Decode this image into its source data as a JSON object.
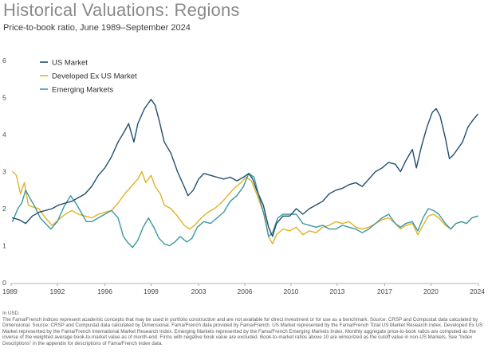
{
  "header": {
    "title": "Historical Valuations: Regions",
    "subtitle": "Price-to-book ratio, June 1989–September 2024"
  },
  "footnotes": {
    "currency": "In USD.",
    "body": "The Fama/French indices represent academic concepts that may be used in portfolio construction and are not available for direct investment or for use as a benchmark. Source: CRSP and Compustat data calculated by Dimensional. Source: CRSP and Compustat data calculated by Dimensional. Fama/French data provided by Fama/French. US Market represented by the Fama/French Total US Market Research Index. Developed Ex US Market represented by the Fama/French International Market Research Index. Emerging Markets represented by the Fama/French Emerging Markets Index. Monthly aggregate price-to-book ratios are computed as the inverse of the weighted average book-to-market value as of month-end. Firms with negative book value are excluded. Book-to-market ratios above 10 are winsorized as the cutoff value in non-US Markets. See \"Index Descriptions\" in the appendix for descriptions of Fama/French index data."
  },
  "chart_data": {
    "type": "line",
    "title": "Historical Valuations: Regions",
    "subtitle": "Price-to-book ratio, June 1989–September 2024",
    "xlabel": "",
    "ylabel": "",
    "xlim": [
      1989.4,
      2024.8
    ],
    "ylim": [
      0,
      6
    ],
    "x_ticks": [
      "1989",
      "1992",
      "1996",
      "1999",
      "2003",
      "2006",
      "2010",
      "2013",
      "2017",
      "2020",
      "2024"
    ],
    "x_tick_values": [
      1989.4,
      1992.9,
      1996.5,
      2000.0,
      2003.6,
      2007.1,
      2010.6,
      2014.1,
      2017.7,
      2021.2,
      2024.8
    ],
    "y_ticks": [
      "0",
      "1",
      "2",
      "3",
      "4",
      "5",
      "6"
    ],
    "y_tick_values": [
      0,
      1,
      2,
      3,
      4,
      5,
      6
    ],
    "grid": false,
    "legend_position": "top-left",
    "series": [
      {
        "name": "US Market",
        "color": "#1f4e6e",
        "points": [
          [
            1989.5,
            1.75
          ],
          [
            1990.0,
            1.7
          ],
          [
            1990.5,
            1.6
          ],
          [
            1991.0,
            1.8
          ],
          [
            1991.5,
            1.9
          ],
          [
            1992.0,
            1.95
          ],
          [
            1992.5,
            2.0
          ],
          [
            1993.0,
            2.1
          ],
          [
            1993.5,
            2.15
          ],
          [
            1994.0,
            2.2
          ],
          [
            1994.5,
            2.3
          ],
          [
            1995.0,
            2.4
          ],
          [
            1995.5,
            2.6
          ],
          [
            1996.0,
            2.9
          ],
          [
            1996.5,
            3.1
          ],
          [
            1997.0,
            3.4
          ],
          [
            1997.5,
            3.8
          ],
          [
            1998.0,
            4.1
          ],
          [
            1998.3,
            4.3
          ],
          [
            1998.7,
            3.8
          ],
          [
            1999.0,
            4.3
          ],
          [
            1999.5,
            4.7
          ],
          [
            2000.0,
            4.95
          ],
          [
            2000.3,
            4.8
          ],
          [
            2000.6,
            4.4
          ],
          [
            2001.0,
            3.8
          ],
          [
            2001.5,
            3.5
          ],
          [
            2002.0,
            3.0
          ],
          [
            2002.5,
            2.6
          ],
          [
            2002.8,
            2.35
          ],
          [
            2003.2,
            2.5
          ],
          [
            2003.6,
            2.8
          ],
          [
            2004.0,
            2.95
          ],
          [
            2004.5,
            2.9
          ],
          [
            2005.0,
            2.85
          ],
          [
            2005.5,
            2.8
          ],
          [
            2006.0,
            2.85
          ],
          [
            2006.5,
            2.75
          ],
          [
            2007.0,
            2.85
          ],
          [
            2007.4,
            2.95
          ],
          [
            2007.7,
            2.8
          ],
          [
            2008.0,
            2.5
          ],
          [
            2008.5,
            2.1
          ],
          [
            2008.9,
            1.5
          ],
          [
            2009.2,
            1.25
          ],
          [
            2009.5,
            1.6
          ],
          [
            2010.0,
            1.8
          ],
          [
            2010.5,
            1.8
          ],
          [
            2011.0,
            2.0
          ],
          [
            2011.5,
            1.85
          ],
          [
            2012.0,
            2.0
          ],
          [
            2012.5,
            2.1
          ],
          [
            2013.0,
            2.2
          ],
          [
            2013.5,
            2.4
          ],
          [
            2014.0,
            2.5
          ],
          [
            2014.5,
            2.55
          ],
          [
            2015.0,
            2.65
          ],
          [
            2015.5,
            2.7
          ],
          [
            2016.0,
            2.6
          ],
          [
            2016.5,
            2.8
          ],
          [
            2017.0,
            3.0
          ],
          [
            2017.5,
            3.1
          ],
          [
            2018.0,
            3.25
          ],
          [
            2018.5,
            3.2
          ],
          [
            2018.9,
            3.0
          ],
          [
            2019.3,
            3.3
          ],
          [
            2019.8,
            3.6
          ],
          [
            2020.1,
            3.1
          ],
          [
            2020.5,
            3.7
          ],
          [
            2020.9,
            4.2
          ],
          [
            2021.3,
            4.6
          ],
          [
            2021.6,
            4.7
          ],
          [
            2021.9,
            4.5
          ],
          [
            2022.3,
            3.9
          ],
          [
            2022.6,
            3.35
          ],
          [
            2022.9,
            3.45
          ],
          [
            2023.2,
            3.6
          ],
          [
            2023.6,
            3.8
          ],
          [
            2024.0,
            4.2
          ],
          [
            2024.4,
            4.4
          ],
          [
            2024.75,
            4.55
          ]
        ]
      },
      {
        "name": "Developed Ex US Market",
        "color": "#e0b226",
        "points": [
          [
            1989.5,
            3.0
          ],
          [
            1989.8,
            2.9
          ],
          [
            1990.1,
            2.4
          ],
          [
            1990.4,
            2.7
          ],
          [
            1990.7,
            2.1
          ],
          [
            1991.0,
            2.05
          ],
          [
            1991.5,
            2.0
          ],
          [
            1992.0,
            1.75
          ],
          [
            1992.5,
            1.55
          ],
          [
            1993.0,
            1.7
          ],
          [
            1993.5,
            1.85
          ],
          [
            1994.0,
            1.95
          ],
          [
            1994.5,
            1.85
          ],
          [
            1995.0,
            1.8
          ],
          [
            1995.5,
            1.75
          ],
          [
            1996.0,
            1.85
          ],
          [
            1996.5,
            1.9
          ],
          [
            1997.0,
            1.95
          ],
          [
            1997.5,
            2.15
          ],
          [
            1998.0,
            2.4
          ],
          [
            1998.5,
            2.6
          ],
          [
            1999.0,
            2.8
          ],
          [
            1999.3,
            3.0
          ],
          [
            1999.6,
            2.7
          ],
          [
            2000.0,
            2.9
          ],
          [
            2000.3,
            2.6
          ],
          [
            2000.7,
            2.4
          ],
          [
            2001.0,
            2.1
          ],
          [
            2001.5,
            2.0
          ],
          [
            2002.0,
            1.8
          ],
          [
            2002.5,
            1.55
          ],
          [
            2002.9,
            1.45
          ],
          [
            2003.3,
            1.55
          ],
          [
            2003.8,
            1.75
          ],
          [
            2004.3,
            1.9
          ],
          [
            2004.8,
            2.0
          ],
          [
            2005.3,
            2.15
          ],
          [
            2005.8,
            2.35
          ],
          [
            2006.3,
            2.55
          ],
          [
            2006.8,
            2.7
          ],
          [
            2007.2,
            2.85
          ],
          [
            2007.6,
            2.75
          ],
          [
            2008.0,
            2.4
          ],
          [
            2008.5,
            1.9
          ],
          [
            2008.9,
            1.25
          ],
          [
            2009.2,
            1.05
          ],
          [
            2009.5,
            1.3
          ],
          [
            2010.0,
            1.45
          ],
          [
            2010.5,
            1.4
          ],
          [
            2011.0,
            1.5
          ],
          [
            2011.5,
            1.3
          ],
          [
            2012.0,
            1.4
          ],
          [
            2012.5,
            1.35
          ],
          [
            2013.0,
            1.5
          ],
          [
            2013.5,
            1.55
          ],
          [
            2014.0,
            1.65
          ],
          [
            2014.5,
            1.6
          ],
          [
            2015.0,
            1.65
          ],
          [
            2015.5,
            1.5
          ],
          [
            2016.0,
            1.45
          ],
          [
            2016.5,
            1.5
          ],
          [
            2017.0,
            1.6
          ],
          [
            2017.5,
            1.7
          ],
          [
            2018.0,
            1.75
          ],
          [
            2018.5,
            1.6
          ],
          [
            2018.9,
            1.45
          ],
          [
            2019.3,
            1.55
          ],
          [
            2019.8,
            1.6
          ],
          [
            2020.2,
            1.3
          ],
          [
            2020.6,
            1.55
          ],
          [
            2021.0,
            1.8
          ],
          [
            2021.4,
            1.85
          ],
          [
            2021.8,
            1.75
          ],
          [
            2022.3,
            1.55
          ],
          [
            2022.7,
            1.45
          ],
          [
            2023.1,
            1.6
          ],
          [
            2023.5,
            1.65
          ],
          [
            2023.9,
            1.6
          ],
          [
            2024.3,
            1.75
          ],
          [
            2024.75,
            1.8
          ]
        ]
      },
      {
        "name": "Emerging Markets",
        "color": "#3a98a0",
        "points": [
          [
            1989.5,
            1.65
          ],
          [
            1989.9,
            2.0
          ],
          [
            1990.2,
            2.15
          ],
          [
            1990.5,
            2.5
          ],
          [
            1990.8,
            2.3
          ],
          [
            1991.2,
            2.05
          ],
          [
            1991.6,
            1.75
          ],
          [
            1992.0,
            1.6
          ],
          [
            1992.4,
            1.45
          ],
          [
            1992.9,
            1.65
          ],
          [
            1993.4,
            2.05
          ],
          [
            1993.9,
            2.35
          ],
          [
            1994.3,
            2.15
          ],
          [
            1994.7,
            1.9
          ],
          [
            1995.1,
            1.65
          ],
          [
            1995.5,
            1.65
          ],
          [
            1996.0,
            1.75
          ],
          [
            1996.5,
            1.85
          ],
          [
            1997.0,
            1.95
          ],
          [
            1997.5,
            1.75
          ],
          [
            1997.9,
            1.25
          ],
          [
            1998.2,
            1.1
          ],
          [
            1998.6,
            0.95
          ],
          [
            1999.0,
            1.15
          ],
          [
            1999.4,
            1.5
          ],
          [
            1999.8,
            1.75
          ],
          [
            2000.2,
            1.5
          ],
          [
            2000.6,
            1.2
          ],
          [
            2001.0,
            1.05
          ],
          [
            2001.4,
            1.0
          ],
          [
            2001.8,
            1.1
          ],
          [
            2002.2,
            1.25
          ],
          [
            2002.7,
            1.1
          ],
          [
            2003.1,
            1.2
          ],
          [
            2003.5,
            1.5
          ],
          [
            2004.0,
            1.65
          ],
          [
            2004.5,
            1.6
          ],
          [
            2005.0,
            1.75
          ],
          [
            2005.5,
            1.9
          ],
          [
            2006.0,
            2.2
          ],
          [
            2006.5,
            2.35
          ],
          [
            2007.0,
            2.6
          ],
          [
            2007.4,
            2.95
          ],
          [
            2007.8,
            2.85
          ],
          [
            2008.2,
            2.3
          ],
          [
            2008.6,
            1.8
          ],
          [
            2008.9,
            1.25
          ],
          [
            2009.2,
            1.35
          ],
          [
            2009.6,
            1.75
          ],
          [
            2010.0,
            1.85
          ],
          [
            2010.5,
            1.85
          ],
          [
            2011.0,
            1.85
          ],
          [
            2011.5,
            1.6
          ],
          [
            2012.0,
            1.55
          ],
          [
            2012.5,
            1.5
          ],
          [
            2013.0,
            1.55
          ],
          [
            2013.5,
            1.45
          ],
          [
            2014.0,
            1.45
          ],
          [
            2014.5,
            1.55
          ],
          [
            2015.0,
            1.5
          ],
          [
            2015.5,
            1.45
          ],
          [
            2016.0,
            1.35
          ],
          [
            2016.5,
            1.45
          ],
          [
            2017.0,
            1.6
          ],
          [
            2017.5,
            1.75
          ],
          [
            2018.0,
            1.85
          ],
          [
            2018.5,
            1.6
          ],
          [
            2018.9,
            1.5
          ],
          [
            2019.3,
            1.6
          ],
          [
            2019.8,
            1.65
          ],
          [
            2020.2,
            1.4
          ],
          [
            2020.6,
            1.75
          ],
          [
            2021.0,
            2.0
          ],
          [
            2021.4,
            1.95
          ],
          [
            2021.8,
            1.85
          ],
          [
            2022.3,
            1.6
          ],
          [
            2022.7,
            1.45
          ],
          [
            2023.1,
            1.6
          ],
          [
            2023.5,
            1.65
          ],
          [
            2023.9,
            1.6
          ],
          [
            2024.3,
            1.75
          ],
          [
            2024.75,
            1.8
          ]
        ]
      }
    ]
  }
}
